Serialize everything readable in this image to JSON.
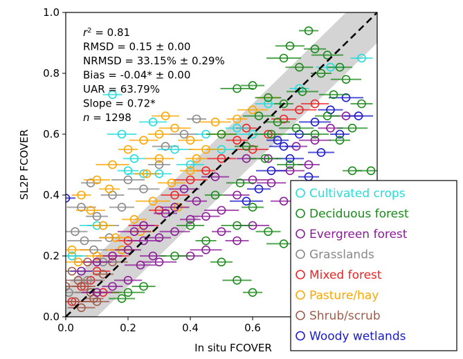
{
  "chart_data": {
    "type": "scatter",
    "title": "",
    "xlabel": "In situ FCOVER",
    "ylabel": "SL2P FCOVER",
    "xlim": [
      0.0,
      1.0
    ],
    "ylim": [
      0.0,
      1.0
    ],
    "x_ticks": [
      "0.0",
      "0.2",
      "0.4",
      "0.6"
    ],
    "y_ticks": [
      "0.0",
      "0.2",
      "0.4",
      "0.6",
      "0.8",
      "1.0"
    ],
    "grid": false,
    "legend_position": "bottom-right",
    "reference_line": {
      "style": "dashed",
      "color": "#000000",
      "slope": 1,
      "intercept": 0
    },
    "uncertainty_band": {
      "color": "#cccccc",
      "description": "shaded band around 1:1 line"
    },
    "stats": [
      {
        "prefix": "",
        "italic": "r",
        "sup": "2",
        "rest": " = 0.81"
      },
      {
        "prefix": "RMSD = 0.15 ± 0.00",
        "italic": "",
        "sup": "",
        "rest": ""
      },
      {
        "prefix": "NRMSD = 33.15% ± 0.29%",
        "italic": "",
        "sup": "",
        "rest": ""
      },
      {
        "prefix": "Bias = -0.04* ± 0.00",
        "italic": "",
        "sup": "",
        "rest": ""
      },
      {
        "prefix": "UAR = 63.79%",
        "italic": "",
        "sup": "",
        "rest": ""
      },
      {
        "prefix": "Slope = 0.72*",
        "italic": "",
        "sup": "",
        "rest": ""
      },
      {
        "prefix": "",
        "italic": "n",
        "sup": "",
        "rest": " = 1298"
      }
    ],
    "series": [
      {
        "name": "Cultivated crops",
        "color": "#22dddd",
        "points": [
          [
            0.15,
            0.73
          ],
          [
            0.18,
            0.6
          ],
          [
            0.22,
            0.52
          ],
          [
            0.25,
            0.47
          ],
          [
            0.3,
            0.47
          ],
          [
            0.35,
            0.55
          ],
          [
            0.4,
            0.5
          ],
          [
            0.45,
            0.6
          ],
          [
            0.5,
            0.55
          ],
          [
            0.55,
            0.62
          ],
          [
            0.6,
            0.6
          ],
          [
            0.65,
            0.7
          ],
          [
            0.75,
            0.75
          ],
          [
            0.85,
            0.82
          ],
          [
            0.95,
            0.85
          ],
          [
            0.02,
            0.2
          ],
          [
            0.05,
            0.15
          ],
          [
            0.1,
            0.3
          ],
          [
            0.28,
            0.64
          ],
          [
            0.2,
            0.48
          ]
        ]
      },
      {
        "name": "Deciduous forest",
        "color": "#1a8a1a",
        "points": [
          [
            0.78,
            0.94
          ],
          [
            0.72,
            0.89
          ],
          [
            0.8,
            0.88
          ],
          [
            0.84,
            0.86
          ],
          [
            0.88,
            0.82
          ],
          [
            0.7,
            0.85
          ],
          [
            0.75,
            0.82
          ],
          [
            0.82,
            0.8
          ],
          [
            0.9,
            0.78
          ],
          [
            0.6,
            0.76
          ],
          [
            0.55,
            0.75
          ],
          [
            0.65,
            0.72
          ],
          [
            0.7,
            0.7
          ],
          [
            0.86,
            0.73
          ],
          [
            0.95,
            0.7
          ],
          [
            0.62,
            0.66
          ],
          [
            0.68,
            0.64
          ],
          [
            0.74,
            0.62
          ],
          [
            0.8,
            0.6
          ],
          [
            0.88,
            0.58
          ],
          [
            0.5,
            0.6
          ],
          [
            0.58,
            0.56
          ],
          [
            0.64,
            0.52
          ],
          [
            0.72,
            0.5
          ],
          [
            0.92,
            0.48
          ],
          [
            0.98,
            0.48
          ],
          [
            0.6,
            0.36
          ],
          [
            0.55,
            0.3
          ],
          [
            0.65,
            0.28
          ],
          [
            0.7,
            0.24
          ],
          [
            0.4,
            0.3
          ],
          [
            0.45,
            0.25
          ],
          [
            0.35,
            0.2
          ],
          [
            0.25,
            0.1
          ],
          [
            0.2,
            0.08
          ],
          [
            0.18,
            0.06
          ],
          [
            0.6,
            0.08
          ],
          [
            0.55,
            0.12
          ],
          [
            0.5,
            0.18
          ],
          [
            0.76,
            0.74
          ],
          [
            0.84,
            0.66
          ],
          [
            0.66,
            0.6
          ],
          [
            0.56,
            0.44
          ],
          [
            0.48,
            0.4
          ],
          [
            0.92,
            0.62
          ]
        ]
      },
      {
        "name": "Evergreen forest",
        "color": "#8b1a99",
        "points": [
          [
            0.65,
            0.52
          ],
          [
            0.72,
            0.48
          ],
          [
            0.78,
            0.5
          ],
          [
            0.6,
            0.45
          ],
          [
            0.55,
            0.4
          ],
          [
            0.5,
            0.35
          ],
          [
            0.45,
            0.33
          ],
          [
            0.4,
            0.32
          ],
          [
            0.35,
            0.28
          ],
          [
            0.3,
            0.26
          ],
          [
            0.25,
            0.25
          ],
          [
            0.2,
            0.22
          ],
          [
            0.15,
            0.2
          ],
          [
            0.1,
            0.18
          ],
          [
            0.05,
            0.15
          ],
          [
            0.45,
            0.22
          ],
          [
            0.4,
            0.2
          ],
          [
            0.3,
            0.18
          ],
          [
            0.2,
            0.12
          ],
          [
            0.15,
            0.1
          ],
          [
            0.1,
            0.08
          ],
          [
            0.55,
            0.25
          ],
          [
            0.6,
            0.3
          ],
          [
            0.7,
            0.38
          ],
          [
            0.5,
            0.28
          ],
          [
            0.35,
            0.36
          ],
          [
            0.25,
            0.3
          ],
          [
            0.8,
            0.58
          ],
          [
            0.85,
            0.62
          ],
          [
            0.9,
            0.66
          ],
          [
            0.48,
            0.46
          ],
          [
            0.42,
            0.38
          ],
          [
            0.38,
            0.42
          ],
          [
            0.32,
            0.34
          ],
          [
            0.22,
            0.28
          ],
          [
            0.28,
            0.2
          ],
          [
            0.58,
            0.52
          ],
          [
            0.66,
            0.44
          ],
          [
            0.74,
            0.56
          ],
          [
            0.24,
            0.17
          ]
        ]
      },
      {
        "name": "Grasslands",
        "color": "#888888",
        "points": [
          [
            0.08,
            0.44
          ],
          [
            0.05,
            0.36
          ],
          [
            0.1,
            0.33
          ],
          [
            0.12,
            0.3
          ],
          [
            0.03,
            0.28
          ],
          [
            0.06,
            0.25
          ],
          [
            0.09,
            0.22
          ],
          [
            0.02,
            0.2
          ],
          [
            0.12,
            0.18
          ],
          [
            0.15,
            0.4
          ],
          [
            0.2,
            0.45
          ],
          [
            0.32,
            0.56
          ],
          [
            0.42,
            0.65
          ],
          [
            0.38,
            0.6
          ],
          [
            0.3,
            0.5
          ],
          [
            0.25,
            0.42
          ],
          [
            0.18,
            0.36
          ],
          [
            0.07,
            0.12
          ],
          [
            0.01,
            0.08
          ],
          [
            0.14,
            0.26
          ]
        ]
      },
      {
        "name": "Mixed forest",
        "color": "#ee2222",
        "points": [
          [
            0.45,
            0.48
          ],
          [
            0.5,
            0.52
          ],
          [
            0.55,
            0.58
          ],
          [
            0.6,
            0.55
          ],
          [
            0.65,
            0.6
          ],
          [
            0.4,
            0.45
          ],
          [
            0.35,
            0.4
          ],
          [
            0.3,
            0.35
          ],
          [
            0.25,
            0.3
          ],
          [
            0.2,
            0.25
          ],
          [
            0.15,
            0.2
          ],
          [
            0.1,
            0.15
          ],
          [
            0.05,
            0.1
          ],
          [
            0.02,
            0.05
          ],
          [
            0.08,
            0.12
          ],
          [
            0.12,
            0.08
          ],
          [
            0.7,
            0.65
          ],
          [
            0.75,
            0.68
          ],
          [
            0.8,
            0.7
          ],
          [
            0.58,
            0.62
          ]
        ]
      },
      {
        "name": "Pasture/hay",
        "color": "#ffa500",
        "points": [
          [
            0.2,
            0.55
          ],
          [
            0.25,
            0.58
          ],
          [
            0.3,
            0.6
          ],
          [
            0.35,
            0.62
          ],
          [
            0.4,
            0.58
          ],
          [
            0.45,
            0.55
          ],
          [
            0.5,
            0.6
          ],
          [
            0.55,
            0.65
          ],
          [
            0.6,
            0.68
          ],
          [
            0.65,
            0.72
          ],
          [
            0.15,
            0.5
          ],
          [
            0.1,
            0.45
          ],
          [
            0.05,
            0.4
          ],
          [
            0.08,
            0.35
          ],
          [
            0.12,
            0.3
          ],
          [
            0.16,
            0.26
          ],
          [
            0.22,
            0.32
          ],
          [
            0.28,
            0.38
          ],
          [
            0.34,
            0.44
          ],
          [
            0.4,
            0.48
          ],
          [
            0.18,
            0.22
          ],
          [
            0.1,
            0.2
          ],
          [
            0.04,
            0.18
          ],
          [
            0.24,
            0.28
          ],
          [
            0.36,
            0.36
          ],
          [
            0.3,
            0.52
          ],
          [
            0.42,
            0.52
          ],
          [
            0.48,
            0.64
          ],
          [
            0.26,
            0.47
          ],
          [
            0.02,
            0.22
          ],
          [
            0.32,
            0.66
          ],
          [
            0.14,
            0.42
          ]
        ]
      },
      {
        "name": "Shrub/scrub",
        "color": "#a05a4a",
        "points": [
          [
            0.02,
            0.15
          ],
          [
            0.04,
            0.12
          ],
          [
            0.06,
            0.1
          ],
          [
            0.08,
            0.08
          ],
          [
            0.1,
            0.05
          ],
          [
            0.03,
            0.05
          ],
          [
            0.05,
            0.03
          ],
          [
            0.12,
            0.14
          ],
          [
            0.15,
            0.18
          ],
          [
            0.18,
            0.22
          ],
          [
            0.0,
            0.1
          ],
          [
            0.07,
            0.18
          ],
          [
            0.09,
            0.06
          ]
        ]
      },
      {
        "name": "Woody wetlands",
        "color": "#1a1acc",
        "points": [
          [
            0.0,
            0.39
          ],
          [
            0.7,
            0.56
          ],
          [
            0.75,
            0.6
          ],
          [
            0.8,
            0.64
          ],
          [
            0.85,
            0.68
          ],
          [
            0.9,
            0.72
          ],
          [
            0.72,
            0.52
          ],
          [
            0.78,
            0.46
          ],
          [
            0.66,
            0.48
          ],
          [
            0.62,
            0.42
          ],
          [
            0.58,
            0.38
          ],
          [
            0.82,
            0.54
          ],
          [
            0.88,
            0.6
          ],
          [
            0.94,
            0.66
          ],
          [
            0.68,
            0.58
          ]
        ]
      }
    ]
  }
}
